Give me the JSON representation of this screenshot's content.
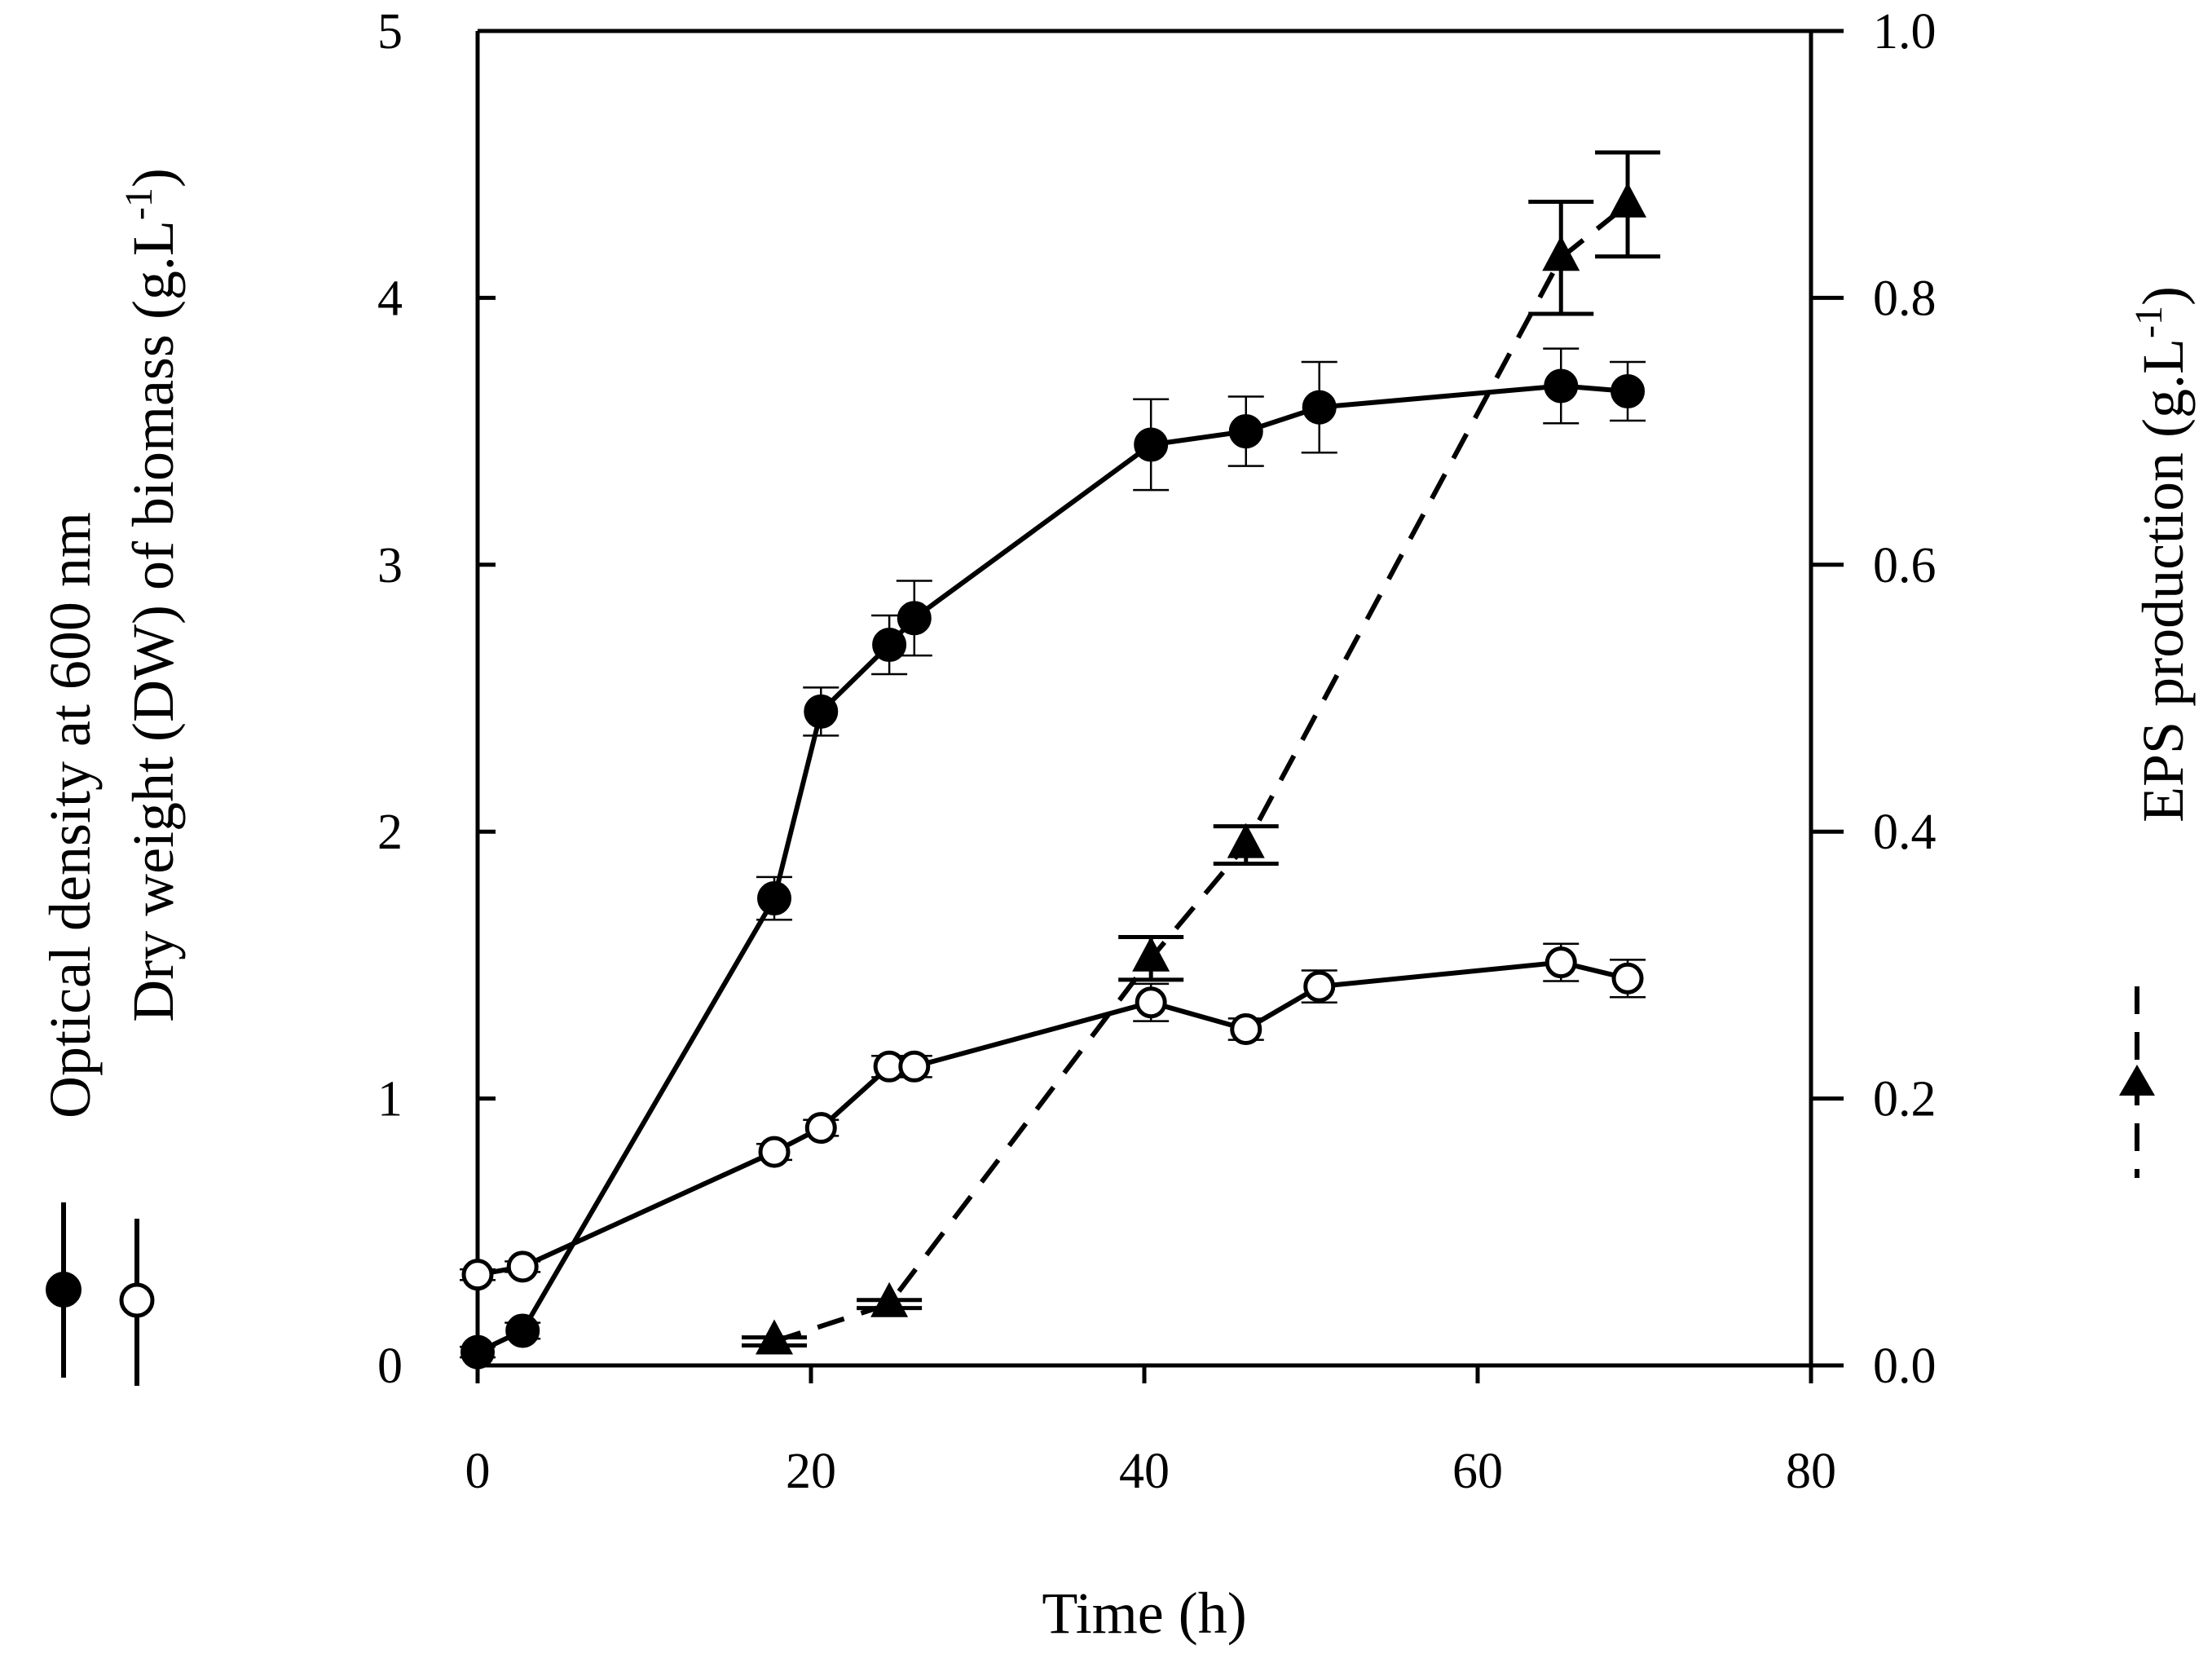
{
  "chart_data": {
    "type": "line",
    "title": "",
    "xlabel": "Time (h)",
    "xlim": [
      0,
      80
    ],
    "xticks": [
      "0",
      "20",
      "40",
      "60",
      "80"
    ],
    "y_left": {
      "label_line1": "Optical density at 600 nm",
      "label_line2_prefix": "Dry weight (DW) of biomass (g.L",
      "label_sup": "-1",
      "label_suffix": ")",
      "lim": [
        0,
        5
      ],
      "ticks": [
        "0",
        "1",
        "2",
        "3",
        "4",
        "5"
      ]
    },
    "y_right": {
      "label_prefix": "EPS production (g.L",
      "label_sup": "-1",
      "label_suffix": ")",
      "lim": [
        0.0,
        1.0
      ],
      "ticks": [
        "0.0",
        "0.2",
        "0.4",
        "0.6",
        "0.8",
        "1.0"
      ]
    },
    "grid": false,
    "legend": "vertical labels beside the y axes",
    "series": [
      {
        "name": "Optical density at 600 nm",
        "axis": "left",
        "marker": "filled-circle",
        "line": "solid",
        "color": "#000000",
        "x": [
          0,
          2.7,
          17.8,
          20.6,
          24.7,
          26.2,
          40.4,
          46.1,
          50.5,
          65.0,
          69.0
        ],
        "y": [
          0.05,
          0.13,
          1.75,
          2.45,
          2.7,
          2.8,
          3.45,
          3.5,
          3.59,
          3.67,
          3.65
        ],
        "err": [
          0.02,
          0.03,
          0.08,
          0.09,
          0.11,
          0.14,
          0.17,
          0.13,
          0.17,
          0.14,
          0.11
        ]
      },
      {
        "name": "Dry weight (DW) of biomass",
        "axis": "left",
        "marker": "open-circle",
        "line": "solid",
        "color": "#000000",
        "x": [
          0,
          2.7,
          17.8,
          20.6,
          24.7,
          26.2,
          40.4,
          46.1,
          50.5,
          65.0,
          69.0
        ],
        "y": [
          0.34,
          0.37,
          0.8,
          0.89,
          1.12,
          1.12,
          1.36,
          1.26,
          1.42,
          1.51,
          1.45
        ],
        "err": [
          0.02,
          0.02,
          0.03,
          0.03,
          0.04,
          0.04,
          0.07,
          0.04,
          0.06,
          0.07,
          0.07
        ]
      },
      {
        "name": "EPS production",
        "axis": "right",
        "marker": "filled-triangle",
        "line": "dashed",
        "color": "#000000",
        "x": [
          17.8,
          24.7,
          40.4,
          46.1,
          65.0,
          69.0
        ],
        "y": [
          0.018,
          0.046,
          0.305,
          0.39,
          0.83,
          0.87
        ],
        "err": [
          0.003,
          0.003,
          0.016,
          0.014,
          0.042,
          0.039
        ]
      }
    ]
  }
}
